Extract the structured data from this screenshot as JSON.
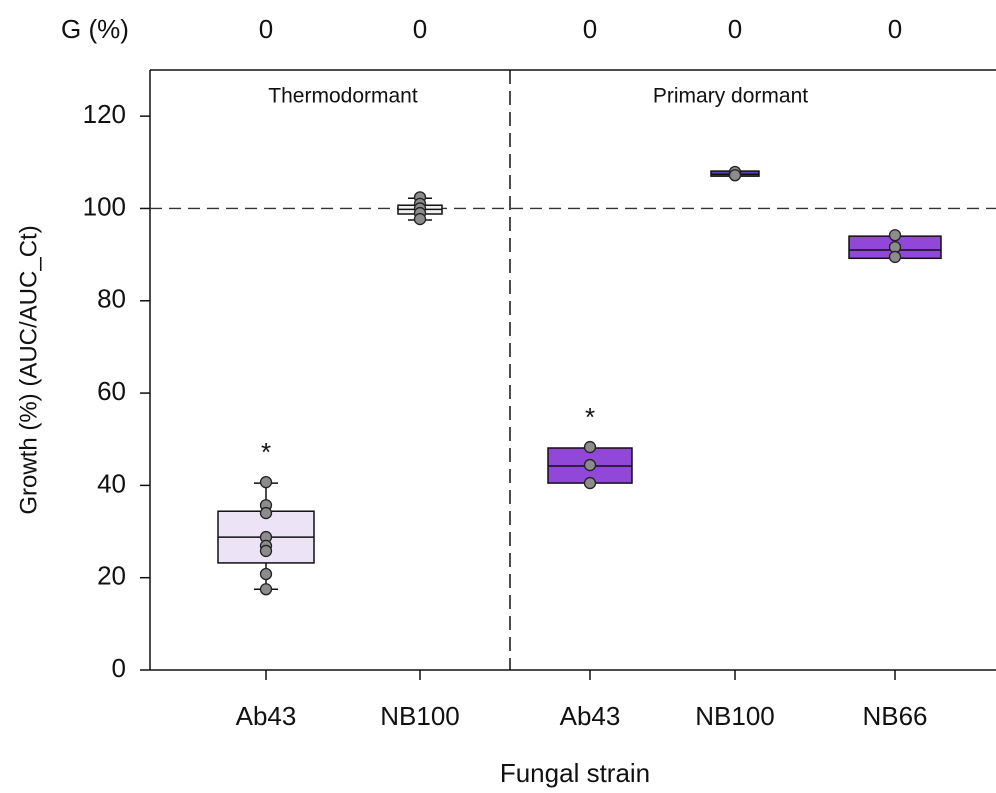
{
  "chart_data": {
    "type": "box",
    "x_label": "Fungal strain",
    "y_label": "Growth (%) (AUC/AUC_Ct)",
    "ylim": [
      0,
      130
    ],
    "yticks": [
      0,
      20,
      40,
      60,
      80,
      100,
      120
    ],
    "reference_line": 100,
    "top_row": {
      "label": "G (%)",
      "values": [
        0,
        0,
        0,
        0,
        0
      ]
    },
    "groups": [
      {
        "label": "Thermodormant",
        "boxes": [
          {
            "category": "Ab43",
            "color": "#ece3f6",
            "whisker_low": 17.5,
            "q1": 23.2,
            "median": 28.8,
            "q3": 34.4,
            "whisker_high": 40.5,
            "points": [
              40.7,
              35.7,
              34,
              28.8,
              26.9,
              25.8,
              20.8,
              17.5
            ],
            "annotation": "*"
          },
          {
            "category": "NB100",
            "color": "#f2f2f2",
            "whisker_low": 97.5,
            "q1": 98.8,
            "median": 99.8,
            "q3": 100.7,
            "whisker_high": 102.2,
            "points": [
              102.4,
              101,
              100,
              99,
              97.7
            ]
          }
        ]
      },
      {
        "label": "Primary dormant",
        "boxes": [
          {
            "category": "Ab43",
            "color": "#9147d8",
            "q1": 40.5,
            "median": 44.2,
            "q3": 48.1,
            "points": [
              48.3,
              44.4,
              40.5
            ],
            "annotation": "*"
          },
          {
            "category": "NB100",
            "color": "#5b40c2",
            "q1": 107,
            "median": 107.4,
            "q3": 108.1,
            "points": [
              107.9,
              107.2
            ]
          },
          {
            "category": "NB66",
            "color": "#9147d8",
            "q1": 89.2,
            "median": 91,
            "q3": 94,
            "points": [
              94.2,
              91.6,
              89.5
            ]
          }
        ]
      }
    ]
  }
}
